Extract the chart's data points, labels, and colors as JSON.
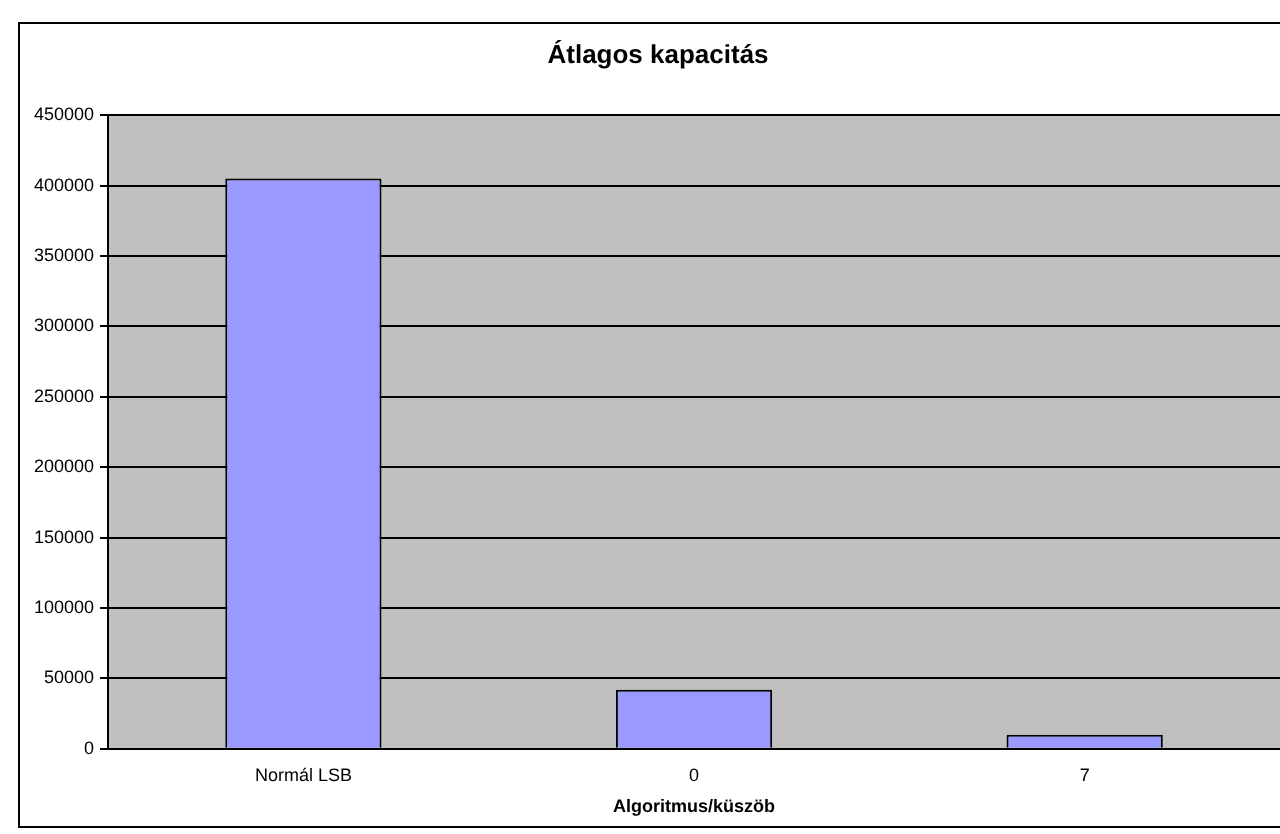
{
  "chart_data": {
    "type": "bar",
    "title": "Átlagos kapacitás",
    "xlabel": "Algoritmus/küszöb",
    "categories": [
      "Normál LSB",
      "0",
      "7"
    ],
    "values": [
      405000,
      42000,
      10000
    ],
    "color": "#9999ff",
    "ylim": [
      0,
      450000
    ],
    "yticks": [
      0,
      50000,
      100000,
      150000,
      200000,
      250000,
      300000,
      350000,
      400000,
      450000
    ],
    "grid": "y",
    "legend": false
  }
}
